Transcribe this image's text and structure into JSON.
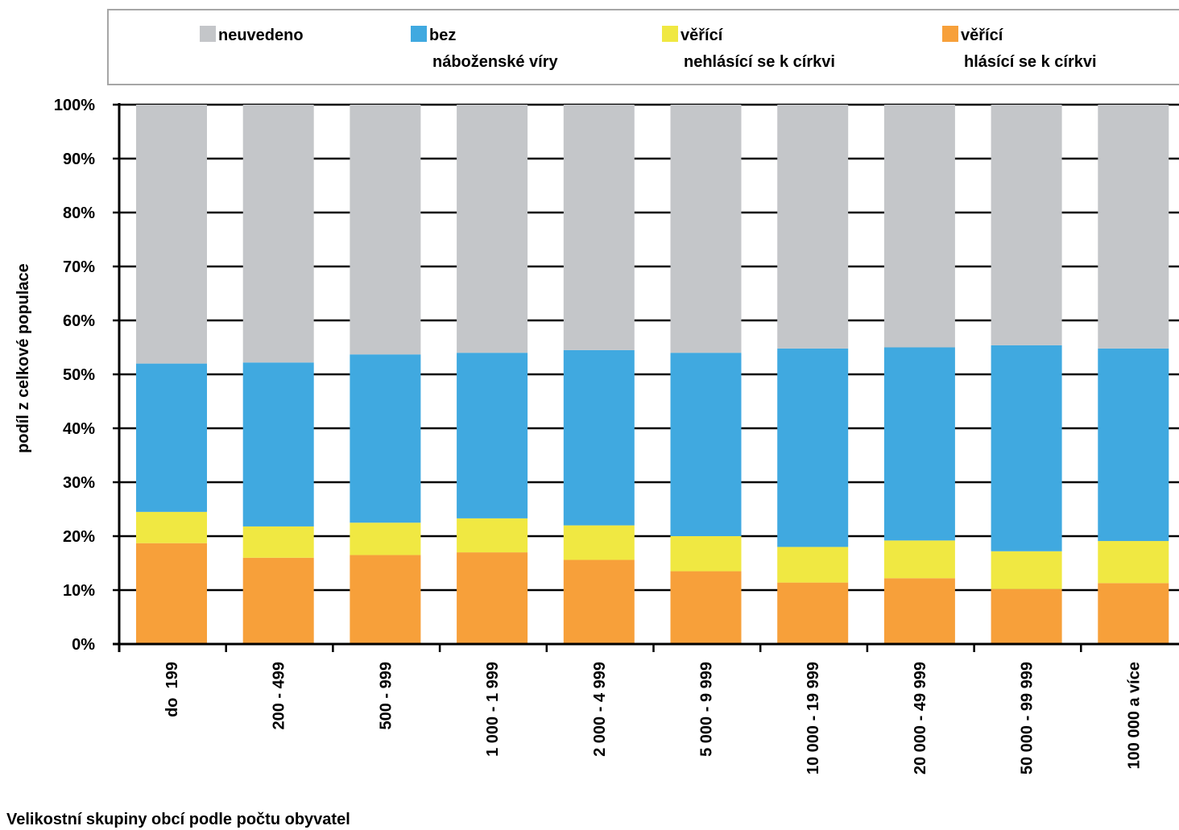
{
  "chart_data": {
    "type": "bar",
    "stacked": true,
    "normalized": true,
    "title": "",
    "xlabel": "Velikostní skupiny obcí podle počtu obyvatel",
    "ylabel": "podíl  z celkové populace",
    "ylim": [
      0,
      100
    ],
    "y_unit": "%",
    "y_ticks": [
      "0%",
      "10%",
      "20%",
      "30%",
      "40%",
      "50%",
      "60%",
      "70%",
      "80%",
      "90%",
      "100%"
    ],
    "grid": true,
    "legend_position": "top",
    "categories": [
      "do  199",
      "200 - 499",
      "500 - 999",
      "1 000 - 1 999",
      "2 000 - 4 999",
      "5 000 - 9 999",
      "10 000 - 19 999",
      "20 000 - 49 999",
      "50 000 - 99 999",
      "100 000 a více"
    ],
    "series": [
      {
        "name": "věřící hlásící se k církvi",
        "legend_lines": [
          "věřící",
          "hlásící se k církvi"
        ],
        "color": "#f7a03a",
        "values": [
          18.7,
          16.0,
          16.5,
          17.0,
          15.6,
          13.5,
          11.4,
          12.2,
          10.2,
          11.3
        ]
      },
      {
        "name": "věřící nehlásící se k církvi",
        "legend_lines": [
          "věřící",
          "nehlásící se k církvi"
        ],
        "color": "#f0e842",
        "values": [
          5.8,
          5.8,
          6.0,
          6.3,
          6.4,
          6.5,
          6.6,
          7.0,
          7.0,
          7.8
        ]
      },
      {
        "name": "bez náboženské víry",
        "legend_lines": [
          "bez",
          "náboženské víry"
        ],
        "color": "#40a9e0",
        "values": [
          27.5,
          30.4,
          31.2,
          30.7,
          32.5,
          34.0,
          36.8,
          35.8,
          38.2,
          35.7
        ]
      },
      {
        "name": "neuvedeno",
        "legend_lines": [
          "neuvedeno"
        ],
        "color": "#c4c6c9",
        "values": [
          48.0,
          47.8,
          46.3,
          46.0,
          45.5,
          46.0,
          45.2,
          45.0,
          44.6,
          45.2
        ]
      }
    ],
    "legend_order": [
      "neuvedeno",
      "bez náboženské víry",
      "věřící nehlásící se k církvi",
      "věřící hlásící se k církvi"
    ]
  }
}
